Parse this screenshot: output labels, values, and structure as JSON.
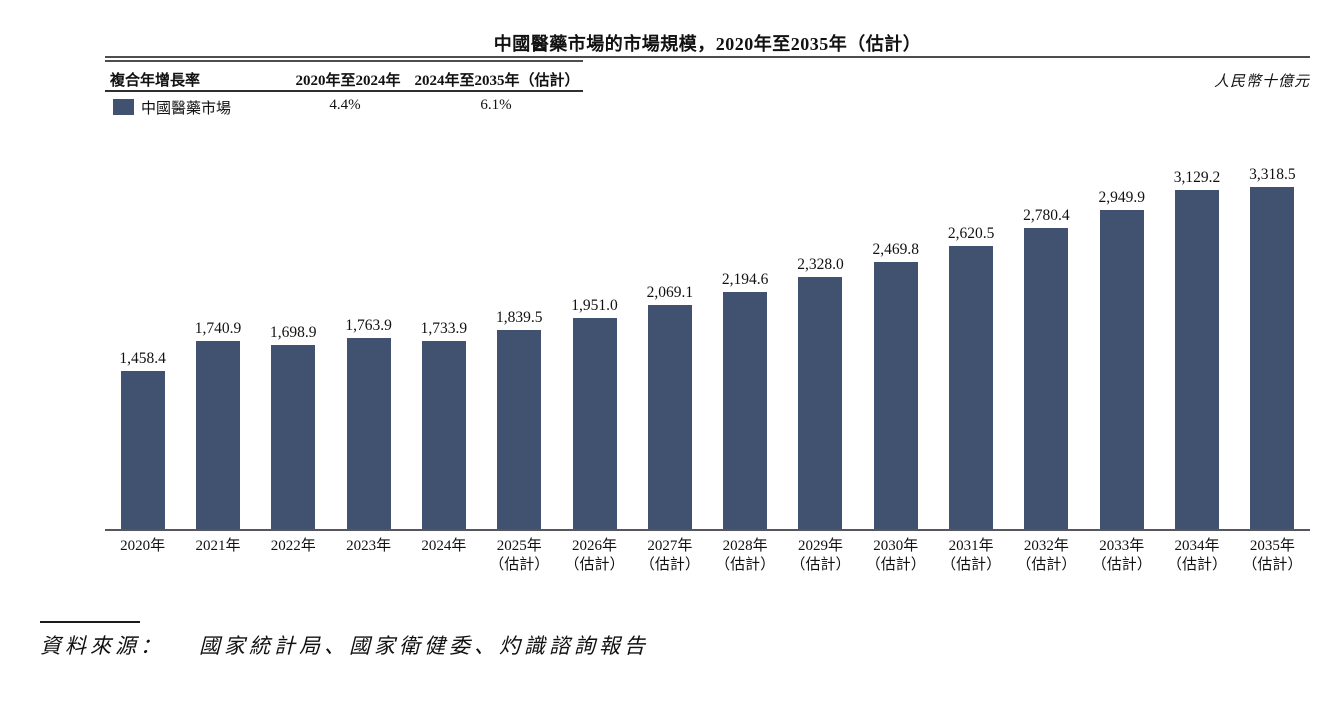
{
  "header": {
    "title": "中國醫藥市場的市場規模，2020年至2035年（估計）",
    "unit_label": "人民幣十億元"
  },
  "legend_table": {
    "col1_header": "複合年增長率",
    "col2_header": "2020年至2024年",
    "col3_header": "2024年至2035年（估計）",
    "series_label": "中國醫藥市場",
    "col2_value": "4.4%",
    "col3_value": "6.1%",
    "swatch_color": "#40526F"
  },
  "source": {
    "label": "資料來源：",
    "text": "國家統計局、國家衛健委、灼識諮詢報告"
  },
  "chart_data": {
    "type": "bar",
    "title": "中國醫藥市場的市場規模，2020年至2035年（估計）",
    "unit": "人民幣十億元",
    "series_name": "中國醫藥市場",
    "bar_color": "#40526F",
    "categories": [
      "2020年",
      "2021年",
      "2022年",
      "2023年",
      "2024年",
      "2025年",
      "2026年",
      "2027年",
      "2028年",
      "2029年",
      "2030年",
      "2031年",
      "2032年",
      "2033年",
      "2034年",
      "2035年"
    ],
    "estimate_note": "（估計）",
    "estimate_from_index": 5,
    "values": [
      1458.4,
      1740.9,
      1698.9,
      1763.9,
      1733.9,
      1839.5,
      1951.0,
      2069.1,
      2194.6,
      2328.0,
      2469.8,
      2620.5,
      2780.4,
      2949.9,
      3129.2,
      3318.5
    ],
    "value_labels": [
      "1,458.4",
      "1,740.9",
      "1,698.9",
      "1,763.9",
      "1,733.9",
      "1,839.5",
      "1,951.0",
      "2,069.1",
      "2,194.6",
      "2,328.0",
      "2,469.8",
      "2,620.5",
      "2,780.4",
      "2,949.9",
      "3,129.2",
      "3,318.5"
    ],
    "ylim": [
      0,
      3318.5
    ],
    "grid": false,
    "legend_position": "top-left-table",
    "cagr": [
      {
        "period": "2020年至2024年",
        "value": "4.4%"
      },
      {
        "period": "2024年至2035年（估計）",
        "value": "6.1%"
      }
    ]
  }
}
